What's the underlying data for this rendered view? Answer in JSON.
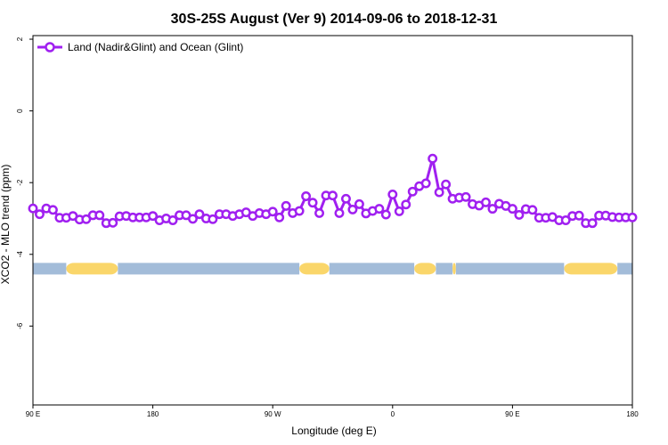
{
  "chart_data": {
    "type": "line",
    "title": "30S-25S August (Ver 9)   2014-09-06 to 2018-12-31",
    "xlabel": "Longitude (deg E)",
    "ylabel": "XCO2 - MLO trend (ppm)",
    "xlim": [
      90,
      450
    ],
    "ylim": [
      -8.2,
      2.1
    ],
    "x_ticks": [
      {
        "value": 90,
        "label": "90 E"
      },
      {
        "value": 162,
        "label": "180"
      },
      {
        "value": 234,
        "label": "90 W"
      },
      {
        "value": 306,
        "label": "0"
      },
      {
        "value": 378,
        "label": "90 E"
      },
      {
        "value": 450,
        "label": "180"
      }
    ],
    "y_ticks": [
      {
        "value": 2,
        "label": "2"
      },
      {
        "value": 0,
        "label": "0"
      },
      {
        "value": -2,
        "label": "-2"
      },
      {
        "value": -4,
        "label": "-4"
      },
      {
        "value": -6,
        "label": "-6"
      }
    ],
    "legend": {
      "position": "top-left",
      "entries": [
        "Land (Nadir&Glint) and Ocean (Glint)"
      ]
    },
    "colors": {
      "series": "#a020f0",
      "ocean": "#a3bcd9",
      "land": "#fad66a",
      "axis": "#000000"
    },
    "series": [
      {
        "name": "Land (Nadir&Glint) and Ocean (Glint)",
        "x": [
          90,
          94,
          98,
          102,
          106,
          110,
          114,
          118,
          122,
          126,
          130,
          134,
          138,
          142,
          146,
          150,
          154,
          158,
          162,
          166,
          170,
          174,
          178,
          182,
          186,
          190,
          194,
          198,
          202,
          206,
          210,
          214,
          218,
          222,
          226,
          230,
          234,
          238,
          242,
          246,
          250,
          254,
          258,
          262,
          266,
          270,
          274,
          278,
          282,
          286,
          290,
          294,
          298,
          302,
          306,
          310,
          314,
          318,
          322,
          326,
          330,
          334,
          338,
          342,
          346,
          350,
          354,
          358,
          362,
          366,
          370,
          374,
          378,
          382,
          386,
          390,
          394,
          398,
          402,
          406,
          410,
          414,
          418,
          422,
          426,
          430,
          434,
          438,
          442,
          446,
          450
        ],
        "values": [
          -2.72,
          -2.88,
          -2.72,
          -2.76,
          -2.98,
          -2.98,
          -2.93,
          -3.03,
          -3.02,
          -2.91,
          -2.91,
          -3.13,
          -3.12,
          -2.94,
          -2.93,
          -2.97,
          -2.97,
          -2.97,
          -2.93,
          -3.05,
          -3.0,
          -3.05,
          -2.91,
          -2.91,
          -3.01,
          -2.88,
          -3.0,
          -3.02,
          -2.88,
          -2.88,
          -2.93,
          -2.88,
          -2.83,
          -2.93,
          -2.85,
          -2.88,
          -2.81,
          -2.97,
          -2.65,
          -2.85,
          -2.79,
          -2.38,
          -2.56,
          -2.85,
          -2.36,
          -2.36,
          -2.85,
          -2.45,
          -2.75,
          -2.6,
          -2.86,
          -2.79,
          -2.73,
          -2.89,
          -2.33,
          -2.8,
          -2.61,
          -2.25,
          -2.1,
          -2.02,
          -1.33,
          -2.27,
          -2.05,
          -2.45,
          -2.42,
          -2.4,
          -2.6,
          -2.64,
          -2.55,
          -2.73,
          -2.59,
          -2.65,
          -2.73,
          -2.9,
          -2.74,
          -2.76,
          -2.98,
          -2.98,
          -2.96,
          -3.05,
          -3.05,
          -2.93,
          -2.92,
          -3.13,
          -3.13,
          -2.92,
          -2.92,
          -2.96,
          -2.97,
          -2.97,
          -2.97
        ]
      }
    ],
    "surface_band": {
      "y_value": -4.4,
      "segments": [
        {
          "type": "ocean",
          "x": [
            90,
            110
          ]
        },
        {
          "type": "land",
          "x": [
            110,
            141
          ]
        },
        {
          "type": "ocean",
          "x": [
            141,
            250
          ]
        },
        {
          "type": "land",
          "x": [
            250,
            268
          ]
        },
        {
          "type": "ocean",
          "x": [
            268,
            319
          ]
        },
        {
          "type": "land",
          "x": [
            319,
            332
          ]
        },
        {
          "type": "ocean",
          "x": [
            332,
            342
          ]
        },
        {
          "type": "land",
          "x": [
            342,
            344
          ]
        },
        {
          "type": "ocean",
          "x": [
            344,
            409
          ]
        },
        {
          "type": "land",
          "x": [
            409,
            441
          ]
        },
        {
          "type": "ocean",
          "x": [
            441,
            450
          ]
        }
      ]
    }
  }
}
